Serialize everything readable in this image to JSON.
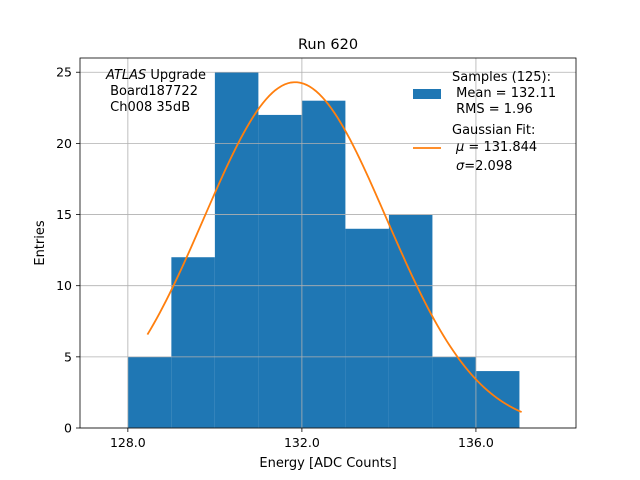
{
  "chart_data": {
    "type": "bar",
    "title": "Run 620",
    "xlabel": "Energy [ADC Counts]",
    "ylabel": "Entries",
    "xlim": [
      126.9,
      138.3
    ],
    "ylim": [
      0,
      26.0
    ],
    "grid": true,
    "x_ticks": [
      128.0,
      132.0,
      136.0
    ],
    "y_ticks": [
      0,
      5,
      10,
      15,
      20,
      25
    ],
    "bins": [
      {
        "lo": 128,
        "hi": 129,
        "count": 5
      },
      {
        "lo": 129,
        "hi": 130,
        "count": 12
      },
      {
        "lo": 130,
        "hi": 131,
        "count": 25
      },
      {
        "lo": 131,
        "hi": 132,
        "count": 22
      },
      {
        "lo": 132,
        "hi": 133,
        "count": 23
      },
      {
        "lo": 133,
        "hi": 134,
        "count": 14
      },
      {
        "lo": 134,
        "hi": 135,
        "count": 15
      },
      {
        "lo": 135,
        "hi": 136,
        "count": 5
      },
      {
        "lo": 136,
        "hi": 137,
        "count": 4
      }
    ],
    "fit": {
      "mu": 131.844,
      "sigma": 2.098,
      "amplitude": 24.3,
      "x_range": [
        128.45,
        137.05
      ]
    },
    "colors": {
      "hist": "#1f77b4",
      "fit": "#ff7f0e",
      "grid": "#b0b0b0"
    },
    "annotation": {
      "line1_italic": "ATLAS",
      "line1_rest": " Upgrade",
      "line2": " Board187722",
      "line3": " Ch008 35dB"
    },
    "legend": {
      "placement": "upper right",
      "samples_lines": [
        "Samples (125):",
        " Mean = 132.11",
        " RMS = 1.96"
      ],
      "fit_line1": "Gaussian Fit:",
      "fit_mu_symbol": "μ",
      "fit_mu_value": " = 131.844",
      "fit_sigma_symbol": "σ",
      "fit_sigma_value": "=2.098"
    }
  }
}
